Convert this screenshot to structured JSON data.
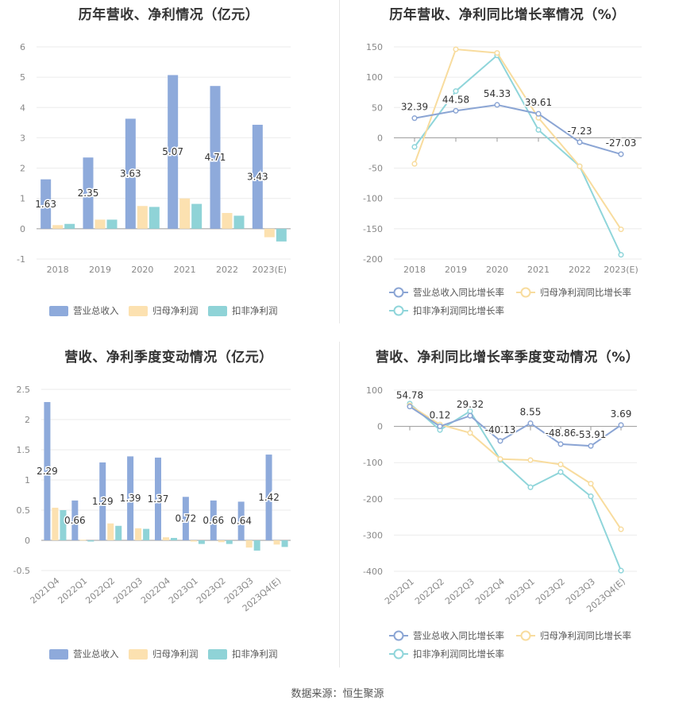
{
  "footer": {
    "source": "数据来源：恒生聚源"
  },
  "colors": {
    "revenue": "#8eaadb",
    "net_profit": "#fce1b0",
    "deducted_profit": "#8fd3d7",
    "line_revenue": "#8ba5d4",
    "line_net": "#f8dc9e",
    "line_deducted": "#8fd5da"
  },
  "chart_data": [
    {
      "type": "bar",
      "title": "历年营收、净利情况（亿元）",
      "categories": [
        "2018",
        "2019",
        "2020",
        "2021",
        "2022",
        "2023(E)"
      ],
      "series": [
        {
          "name": "营业总收入",
          "values": [
            1.63,
            2.35,
            3.63,
            5.07,
            4.71,
            3.43
          ]
        },
        {
          "name": "归母净利润",
          "values": [
            0.12,
            0.3,
            0.75,
            1.0,
            0.52,
            -0.28
          ]
        },
        {
          "name": "扣非净利润",
          "values": [
            0.16,
            0.3,
            0.72,
            0.82,
            0.43,
            -0.42
          ]
        }
      ],
      "data_labels": [
        "1.63",
        "2.35",
        "3.63",
        "5.07",
        "4.71",
        "3.43"
      ],
      "ylim": [
        -1,
        6
      ],
      "yticks": [
        -1,
        0,
        1,
        2,
        3,
        4,
        5,
        6
      ],
      "grid": true,
      "legend": "bottom"
    },
    {
      "type": "line",
      "title": "历年营收、净利同比增长率情况（%）",
      "categories": [
        "2018",
        "2019",
        "2020",
        "2021",
        "2022",
        "2023(E)"
      ],
      "series": [
        {
          "name": "营业总收入同比增长率",
          "values": [
            32.39,
            44.58,
            54.33,
            39.61,
            -7.23,
            -27.03
          ]
        },
        {
          "name": "归母净利润同比增长率",
          "values": [
            -43,
            146,
            140,
            33,
            -47,
            -151
          ]
        },
        {
          "name": "扣非净利润同比增长率",
          "values": [
            -15,
            77,
            136,
            13,
            -47,
            -193
          ]
        }
      ],
      "data_labels": [
        "32.39",
        "44.58",
        "54.33",
        "39.61",
        "-7.23",
        "-27.03"
      ],
      "ylim": [
        -200,
        150
      ],
      "yticks": [
        -200,
        -150,
        -100,
        -50,
        0,
        50,
        100,
        150
      ],
      "grid": true,
      "legend": "bottom"
    },
    {
      "type": "bar",
      "title": "营收、净利季度变动情况（亿元）",
      "categories": [
        "2021Q4",
        "2022Q1",
        "2022Q2",
        "2022Q3",
        "2022Q4",
        "2023Q1",
        "2023Q2",
        "2023Q3",
        "2023Q4(E)"
      ],
      "series": [
        {
          "name": "营业总收入",
          "values": [
            2.29,
            0.66,
            1.29,
            1.39,
            1.37,
            0.72,
            0.66,
            0.64,
            1.42
          ]
        },
        {
          "name": "归母净利润",
          "values": [
            0.54,
            0.01,
            0.28,
            0.2,
            0.05,
            -0.02,
            -0.03,
            -0.12,
            -0.07
          ]
        },
        {
          "name": "扣非净利润",
          "values": [
            0.5,
            -0.02,
            0.24,
            0.19,
            0.04,
            -0.06,
            -0.06,
            -0.17,
            -0.11
          ]
        }
      ],
      "data_labels": [
        "2.29",
        "0.66",
        "1.29",
        "1.39",
        "1.37",
        "0.72",
        "0.66",
        "0.64",
        "1.42"
      ],
      "ylim": [
        -0.5,
        2.5
      ],
      "yticks": [
        -0.5,
        0,
        0.5,
        1,
        1.5,
        2,
        2.5
      ],
      "grid": true,
      "legend": "bottom"
    },
    {
      "type": "line",
      "title": "营收、净利同比增长率季度变动情况（%）",
      "categories": [
        "2022Q1",
        "2022Q2",
        "2022Q3",
        "2022Q4",
        "2023Q1",
        "2023Q2",
        "2023Q3",
        "2023Q4(E)"
      ],
      "series": [
        {
          "name": "营业总收入同比增长率",
          "values": [
            54.78,
            0.12,
            29.32,
            -40.13,
            8.55,
            -48.86,
            -53.91,
            3.69
          ]
        },
        {
          "name": "归母净利润同比增长率",
          "values": [
            58,
            5,
            -18,
            -90,
            -93,
            -105,
            -158,
            -284
          ]
        },
        {
          "name": "扣非净利润同比增长率",
          "values": [
            63,
            -10,
            42,
            -92,
            -168,
            -126,
            -193,
            -398
          ]
        }
      ],
      "data_labels": [
        "54.78",
        "0.12",
        "29.32",
        "-40.13",
        "8.55",
        "-48.86",
        "-53.91",
        "3.69"
      ],
      "ylim": [
        -400,
        100
      ],
      "yticks": [
        -400,
        -300,
        -200,
        -100,
        0,
        100
      ],
      "grid": true,
      "legend": "bottom"
    }
  ]
}
